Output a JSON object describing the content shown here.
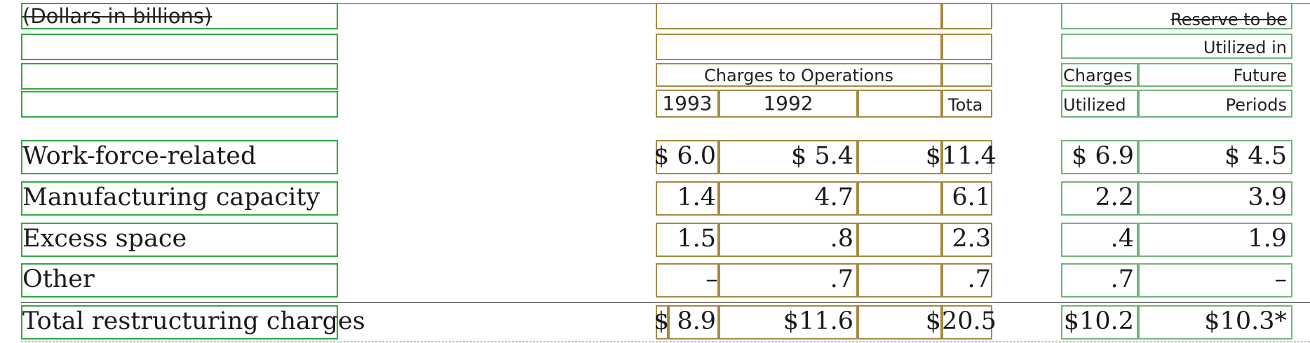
{
  "table": {
    "caption": "(Dollars in billions)",
    "headers": {
      "group_charges_ops": "Charges to Operations",
      "col_1993": "1993",
      "col_1992": "1992",
      "col_total": "Tota",
      "reserve_line1": "Reserve to be",
      "reserve_line2": "Utilized in",
      "reserve_line3": "Future",
      "reserve_line4": "Periods",
      "charges_line1": "Charges",
      "charges_line2": "Utilized"
    },
    "rows": [
      {
        "label": "Work-force-related",
        "d1993": "$ 6.0",
        "d1992": "$ 5.4",
        "total_sign": "$",
        "total": "11.4",
        "utilized": "$ 6.9",
        "reserve": "$ 4.5"
      },
      {
        "label": "Manufacturing capacity",
        "d1993": "1.4",
        "d1992": "4.7",
        "total_sign": "",
        "total": "6.1",
        "utilized": "2.2",
        "reserve": "3.9"
      },
      {
        "label": "Excess space",
        "d1993": "1.5",
        "d1992": ".8",
        "total_sign": "",
        "total": "2.3",
        "utilized": ".4",
        "reserve": "1.9"
      },
      {
        "label": "Other",
        "d1993": "–",
        "d1992": ".7",
        "total_sign": "",
        "total": ".7",
        "utilized": ".7",
        "reserve": "–"
      },
      {
        "label": "Total restructuring charges",
        "d1993": "$ 8.9",
        "d1992": "$11.6",
        "total_sign": "$",
        "total": "20.5",
        "utilized": "$10.2",
        "reserve": "$10.3*"
      }
    ]
  },
  "annotation_colors": {
    "label_col": "#2faa3e",
    "ops_col": "#a68a44",
    "util_col": "#74b47a"
  }
}
